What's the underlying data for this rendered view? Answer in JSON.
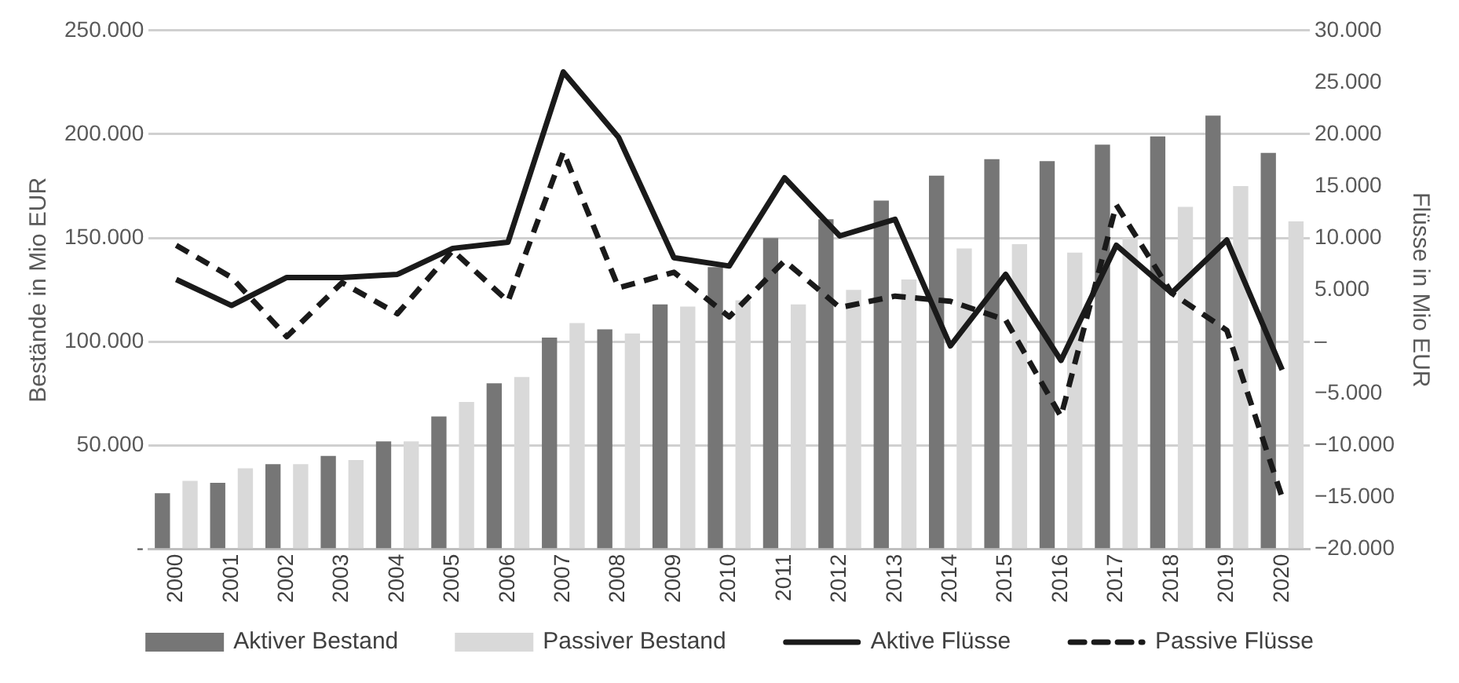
{
  "chart_data": {
    "type": "bar",
    "categories": [
      "2000",
      "2001",
      "2002",
      "2003",
      "2004",
      "2005",
      "2006",
      "2007",
      "2008",
      "2009",
      "2010",
      "2011",
      "2012",
      "2013",
      "2014",
      "2015",
      "2016",
      "2017",
      "2018",
      "2019",
      "2020"
    ],
    "ylabel": "Bestände in Mio EUR",
    "y2label": "Flüsse in Mio EUR",
    "series": [
      {
        "name": "Aktiver Bestand",
        "color": "#767676",
        "values": [
          27000,
          32000,
          41000,
          45000,
          52000,
          64000,
          80000,
          102000,
          106000,
          118000,
          136000,
          150000,
          159000,
          168000,
          180000,
          188000,
          187000,
          195000,
          199000,
          209000,
          191000
        ]
      },
      {
        "name": "Passiver Bestand",
        "color": "#d9d9d9",
        "values": [
          33000,
          39000,
          41000,
          43000,
          52000,
          71000,
          83000,
          109000,
          104000,
          117000,
          120000,
          118000,
          125000,
          130000,
          145000,
          147000,
          143000,
          150000,
          165000,
          175000,
          158000
        ]
      },
      {
        "name": "Aktive Flüsse",
        "type": "line",
        "axis": "y2",
        "line_style": "solid",
        "color": "#1a1a1a",
        "values": [
          6000,
          3500,
          6200,
          6200,
          6500,
          9000,
          9600,
          26000,
          19700,
          8100,
          7300,
          15800,
          10200,
          11800,
          -400,
          6500,
          -1800,
          9300,
          4700,
          9800,
          -2700
        ]
      },
      {
        "name": "Passive Flüsse",
        "type": "line",
        "axis": "y2",
        "line_style": "dashed",
        "color": "#1a1a1a",
        "values": [
          9300,
          6200,
          500,
          5700,
          2700,
          8800,
          3900,
          18300,
          5200,
          6700,
          2400,
          7800,
          3300,
          4400,
          3900,
          2100,
          -7200,
          13200,
          4700,
          1100,
          -15000
        ]
      }
    ],
    "ylim": [
      0,
      250000
    ],
    "yticks": [
      {
        "value": 0,
        "label": "-"
      },
      {
        "value": 50000,
        "label": "50.000"
      },
      {
        "value": 100000,
        "label": "100.000"
      },
      {
        "value": 150000,
        "label": "150.000"
      },
      {
        "value": 200000,
        "label": "200.000"
      },
      {
        "value": 250000,
        "label": "250.000"
      }
    ],
    "y2lim": [
      -20000,
      30000
    ],
    "y2ticks": [
      {
        "value": -20000,
        "label": "−20.000"
      },
      {
        "value": -15000,
        "label": "−15.000"
      },
      {
        "value": -10000,
        "label": "−10.000"
      },
      {
        "value": -5000,
        "label": "−5.000"
      },
      {
        "value": 0,
        "label": "–"
      },
      {
        "value": 5000,
        "label": "5.000"
      },
      {
        "value": 10000,
        "label": "10.000"
      },
      {
        "value": 15000,
        "label": "15.000"
      },
      {
        "value": 20000,
        "label": "20.000"
      },
      {
        "value": 25000,
        "label": "25.000"
      },
      {
        "value": 30000,
        "label": "30.000"
      }
    ],
    "grid": "y",
    "legend": "bottom",
    "marker": "none"
  }
}
